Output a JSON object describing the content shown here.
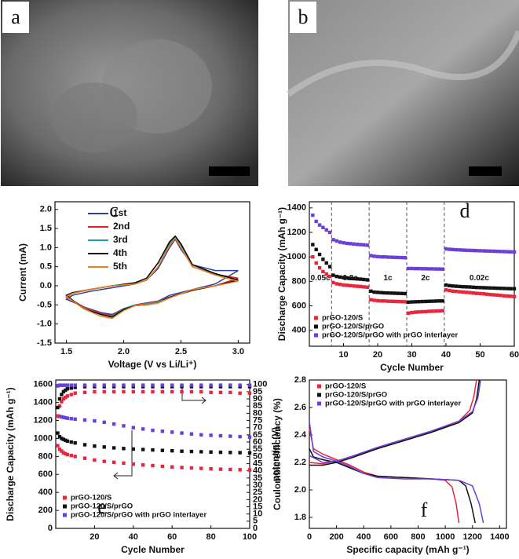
{
  "images": [
    {
      "label": "a"
    },
    {
      "label": "b"
    }
  ],
  "chart_data": [
    {
      "type": "line",
      "panel_label": "c",
      "x_label": "Voltage (V vs Li/Li⁺)",
      "y_label": "Current (mA)",
      "xlim": [
        1.4,
        3.1
      ],
      "xticks": [
        1.5,
        {
          "value": 2,
          "label": "2.0"
        },
        2.5,
        {
          "value": 3,
          "label": "3.0"
        }
      ],
      "ylim": [
        -1.5,
        2.2
      ],
      "yticks": [
        -1.5,
        {
          "value": -1,
          "label": "-1.0"
        },
        -0.5,
        {
          "value": 0,
          "label": "0.0"
        },
        0.5,
        {
          "value": 1,
          "label": "1.0"
        },
        1.5,
        {
          "value": 2,
          "label": "2.0"
        }
      ],
      "legend": "upper left",
      "x": [
        3.0,
        2.8,
        2.6,
        2.4,
        2.3,
        2.2,
        2.1,
        2.0,
        1.9,
        1.8,
        1.65,
        1.5,
        1.55,
        1.7,
        1.9,
        2.1,
        2.2,
        2.3,
        2.4,
        2.45,
        2.5,
        2.6,
        2.8,
        3.0
      ],
      "series": [
        {
          "name": "1st",
          "color": "#2a3f9e",
          "values": [
            0.4,
            0.05,
            -0.1,
            -0.25,
            -0.4,
            -0.45,
            -0.5,
            -0.6,
            -0.75,
            -0.7,
            -0.55,
            -0.35,
            -0.25,
            -0.15,
            -0.05,
            0.05,
            0.15,
            0.45,
            1.0,
            1.22,
            0.95,
            0.55,
            0.4,
            0.4
          ]
        },
        {
          "name": "2nd",
          "color": "#e0202a",
          "values": [
            0.2,
            0.0,
            -0.1,
            -0.3,
            -0.4,
            -0.45,
            -0.5,
            -0.6,
            -0.78,
            -0.72,
            -0.55,
            -0.3,
            -0.2,
            -0.1,
            0.0,
            0.05,
            0.15,
            0.5,
            1.05,
            1.25,
            1.0,
            0.5,
            0.3,
            0.2
          ]
        },
        {
          "name": "3rd",
          "color": "#20a0a0",
          "values": [
            0.15,
            0.0,
            -0.1,
            -0.3,
            -0.42,
            -0.47,
            -0.5,
            -0.6,
            -0.8,
            -0.75,
            -0.58,
            -0.28,
            -0.2,
            -0.1,
            0.0,
            0.05,
            0.15,
            0.5,
            1.1,
            1.28,
            1.05,
            0.5,
            0.3,
            0.15
          ]
        },
        {
          "name": "4th",
          "color": "#000000",
          "values": [
            0.15,
            0.0,
            -0.12,
            -0.3,
            -0.45,
            -0.5,
            -0.52,
            -0.62,
            -0.82,
            -0.75,
            -0.6,
            -0.25,
            -0.18,
            -0.1,
            0.0,
            0.08,
            0.2,
            0.6,
            1.15,
            1.3,
            1.1,
            0.55,
            0.32,
            0.15
          ]
        },
        {
          "name": "5th",
          "color": "#f08020",
          "values": [
            0.12,
            0.0,
            -0.1,
            -0.32,
            -0.45,
            -0.5,
            -0.52,
            -0.65,
            -0.85,
            -0.8,
            -0.6,
            -0.28,
            -0.2,
            -0.1,
            0.0,
            0.05,
            0.15,
            0.5,
            1.05,
            1.25,
            1.0,
            0.5,
            0.28,
            0.12
          ]
        }
      ]
    },
    {
      "type": "scatter",
      "panel_label": "d",
      "x_label": "Cycle Number",
      "y_label": "Discharge Capacity (mAh g⁻¹)",
      "xlim": [
        0,
        60
      ],
      "xticks": [
        10,
        20,
        30,
        40,
        50,
        60
      ],
      "ylim": [
        270,
        1450
      ],
      "yticks": [
        400,
        600,
        800,
        1000,
        1200,
        1400
      ],
      "legend": "lower left",
      "dividers": [
        6.5,
        17.5,
        28.5,
        39.5
      ],
      "annotations": [
        "0.05c",
        "0.2c",
        "1c",
        "2c",
        "0.02c"
      ],
      "x": [
        1,
        2,
        3,
        4,
        5,
        6,
        7,
        8,
        9,
        10,
        11,
        12,
        13,
        14,
        15,
        16,
        17,
        18,
        19,
        20,
        21,
        22,
        23,
        24,
        25,
        26,
        27,
        28,
        29,
        30,
        31,
        32,
        33,
        34,
        35,
        36,
        37,
        38,
        39,
        40,
        41,
        42,
        43,
        44,
        45,
        46,
        47,
        48,
        49,
        50,
        51,
        52,
        53,
        54,
        55,
        56,
        57,
        58,
        59,
        60
      ],
      "series": [
        {
          "name": "prGO-120/S",
          "color": "#e8253b",
          "values": [
            1000,
            950,
            910,
            880,
            860,
            840,
            790,
            780,
            775,
            770,
            768,
            765,
            762,
            760,
            758,
            755,
            752,
            650,
            645,
            642,
            640,
            640,
            638,
            637,
            636,
            635,
            634,
            633,
            540,
            545,
            548,
            550,
            552,
            553,
            555,
            556,
            557,
            558,
            560,
            730,
            725,
            720,
            718,
            715,
            712,
            710,
            708,
            705,
            702,
            700,
            698,
            695,
            692,
            690,
            688,
            685,
            682,
            680,
            678,
            675
          ]
        },
        {
          "name": "prGO-120/S/prGO",
          "color": "#111111",
          "values": [
            1100,
            1060,
            1020,
            980,
            950,
            920,
            850,
            840,
            835,
            830,
            828,
            825,
            822,
            820,
            818,
            815,
            812,
            720,
            712,
            710,
            708,
            706,
            705,
            704,
            703,
            702,
            701,
            700,
            630,
            632,
            633,
            634,
            635,
            636,
            637,
            638,
            639,
            640,
            640,
            770,
            765,
            762,
            760,
            758,
            756,
            755,
            754,
            752,
            750,
            749,
            748,
            747,
            746,
            745,
            744,
            743,
            742,
            741,
            740,
            740
          ]
        },
        {
          "name": "prGO-120/S/prGO with prGO interlayer",
          "color": "#6a3fd8",
          "values": [
            1340,
            1290,
            1260,
            1240,
            1220,
            1200,
            1140,
            1130,
            1120,
            1115,
            1110,
            1108,
            1105,
            1102,
            1100,
            1098,
            1095,
            1010,
            1005,
            1002,
            1000,
            1000,
            998,
            997,
            996,
            995,
            994,
            993,
            905,
            905,
            904,
            904,
            903,
            903,
            902,
            902,
            901,
            901,
            900,
            1065,
            1062,
            1060,
            1058,
            1057,
            1055,
            1054,
            1053,
            1052,
            1051,
            1050,
            1049,
            1048,
            1047,
            1046,
            1045,
            1044,
            1043,
            1042,
            1041,
            1040
          ]
        }
      ]
    },
    {
      "type": "scatter",
      "panel_label": "e",
      "x_label": "Cycle Number",
      "y_label": "Discharge Capacity (mAh g⁻¹)",
      "y2_label": "Coulombic efficiency (%)",
      "xlim": [
        0,
        100
      ],
      "xticks": [
        20,
        40,
        60,
        80,
        100
      ],
      "ylim": [
        0,
        1650
      ],
      "yticks": [
        0,
        200,
        400,
        600,
        800,
        1000,
        1200,
        1400,
        1600
      ],
      "y2lim": [
        0,
        103.125
      ],
      "y2ticks": [
        0,
        5,
        10,
        15,
        20,
        25,
        30,
        35,
        40,
        45,
        50,
        55,
        60,
        65,
        70,
        75,
        80,
        85,
        90,
        95,
        100
      ],
      "legend": "lower left",
      "x": [
        1,
        2,
        3,
        4,
        5,
        6,
        8,
        10,
        15,
        20,
        25,
        30,
        35,
        40,
        45,
        50,
        55,
        60,
        65,
        70,
        75,
        80,
        85,
        90,
        95,
        100
      ],
      "series": [
        {
          "name": "prGO-120/S",
          "color": "#e8253b",
          "values": [
            920,
            880,
            860,
            840,
            830,
            820,
            810,
            800,
            780,
            760,
            745,
            735,
            725,
            715,
            705,
            698,
            690,
            683,
            677,
            672,
            667,
            662,
            658,
            655,
            652,
            650
          ]
        },
        {
          "name": "prGO-120/S/prGO",
          "color": "#111111",
          "values": [
            1060,
            1020,
            1000,
            990,
            980,
            970,
            960,
            950,
            930,
            915,
            905,
            895,
            888,
            882,
            877,
            872,
            867,
            863,
            858,
            855,
            852,
            849,
            846,
            844,
            842,
            840
          ]
        },
        {
          "name": "prGO-120/S/prGO with prGO interlayer",
          "color": "#6a3fd8",
          "values": [
            1250,
            1245,
            1240,
            1235,
            1230,
            1225,
            1220,
            1215,
            1205,
            1195,
            1180,
            1160,
            1140,
            1120,
            1105,
            1090,
            1080,
            1070,
            1060,
            1050,
            1040,
            1035,
            1030,
            1025,
            1020,
            1015
          ]
        },
        {
          "color": "#e8253b",
          "axis": "y2",
          "values": [
            78,
            85,
            88,
            90,
            91,
            92,
            93,
            94,
            94.5,
            95,
            95,
            95,
            95,
            95,
            95,
            95,
            95,
            95,
            95,
            95,
            95,
            94.5,
            94.5,
            94.5,
            94,
            94
          ]
        },
        {
          "color": "#111111",
          "axis": "y2",
          "values": [
            84,
            90,
            93,
            95,
            96,
            97,
            97.5,
            98,
            98.5,
            98.5,
            98.5,
            98.5,
            98.5,
            98.5,
            98.5,
            98.5,
            98.5,
            98.5,
            98.5,
            98.5,
            98.5,
            98.5,
            98.5,
            98.5,
            98.5,
            98.5
          ]
        },
        {
          "color": "#6a3fd8",
          "axis": "y2",
          "values": [
            99,
            99.5,
            99.5,
            99.5,
            99.5,
            99.5,
            99.5,
            99.5,
            99.5,
            99.5,
            99.5,
            99.5,
            99.5,
            99.5,
            99.5,
            99.5,
            99.5,
            99.5,
            99.5,
            99.5,
            99.5,
            99.5,
            99.5,
            99.5,
            99.5,
            99.5
          ]
        }
      ]
    },
    {
      "type": "line",
      "panel_label": "f",
      "x_label": "Specific capacity (mAh g⁻¹)",
      "y_label": "potential (V)",
      "xlim": [
        0,
        1450
      ],
      "xticks": [
        0,
        200,
        400,
        600,
        800,
        1000,
        1200,
        1400
      ],
      "ylim": [
        1.72,
        2.8
      ],
      "yticks": [
        1.8,
        {
          "value": 2,
          "label": "2.0"
        },
        2.2,
        2.4,
        2.6,
        2.8
      ],
      "legend": "upper left",
      "series": [
        {
          "name": "prGO-120/S",
          "color": "#e8253b",
          "x": [
            0,
            30,
            100,
            200,
            300,
            400,
            500,
            700,
            900,
            1000,
            1050,
            1080,
            1100,
            null,
            0,
            100,
            200,
            300,
            500,
            700,
            900,
            1100,
            1180,
            1210,
            1230
          ],
          "values": [
            2.45,
            2.3,
            2.26,
            2.22,
            2.18,
            2.13,
            2.1,
            2.09,
            2.08,
            2.07,
            2.02,
            1.9,
            1.76,
            null,
            2.2,
            2.19,
            2.21,
            2.24,
            2.3,
            2.36,
            2.42,
            2.5,
            2.58,
            2.68,
            2.8
          ]
        },
        {
          "name": "prGO-120/S/prGO",
          "color": "#111111",
          "x": [
            0,
            30,
            100,
            200,
            300,
            400,
            500,
            700,
            900,
            1100,
            1150,
            1190,
            1220,
            null,
            0,
            100,
            200,
            300,
            500,
            700,
            900,
            1100,
            1200,
            1230,
            1250
          ],
          "values": [
            2.3,
            2.24,
            2.22,
            2.2,
            2.16,
            2.12,
            2.1,
            2.09,
            2.08,
            2.07,
            2.03,
            1.9,
            1.76,
            null,
            2.18,
            2.18,
            2.2,
            2.23,
            2.3,
            2.36,
            2.42,
            2.49,
            2.56,
            2.66,
            2.8
          ]
        },
        {
          "name": "prGO-120/S/prGO with prGO interlayer",
          "color": "#6a3fd8",
          "x": [
            0,
            30,
            100,
            200,
            300,
            400,
            500,
            700,
            900,
            1100,
            1200,
            1250,
            1280,
            null,
            0,
            100,
            200,
            300,
            500,
            700,
            900,
            1100,
            1200,
            1240,
            1260
          ],
          "values": [
            2.5,
            2.28,
            2.24,
            2.21,
            2.17,
            2.12,
            2.09,
            2.08,
            2.08,
            2.07,
            2.03,
            1.9,
            1.76,
            null,
            2.25,
            2.2,
            2.21,
            2.24,
            2.31,
            2.37,
            2.43,
            2.5,
            2.57,
            2.67,
            2.8
          ]
        }
      ]
    }
  ]
}
